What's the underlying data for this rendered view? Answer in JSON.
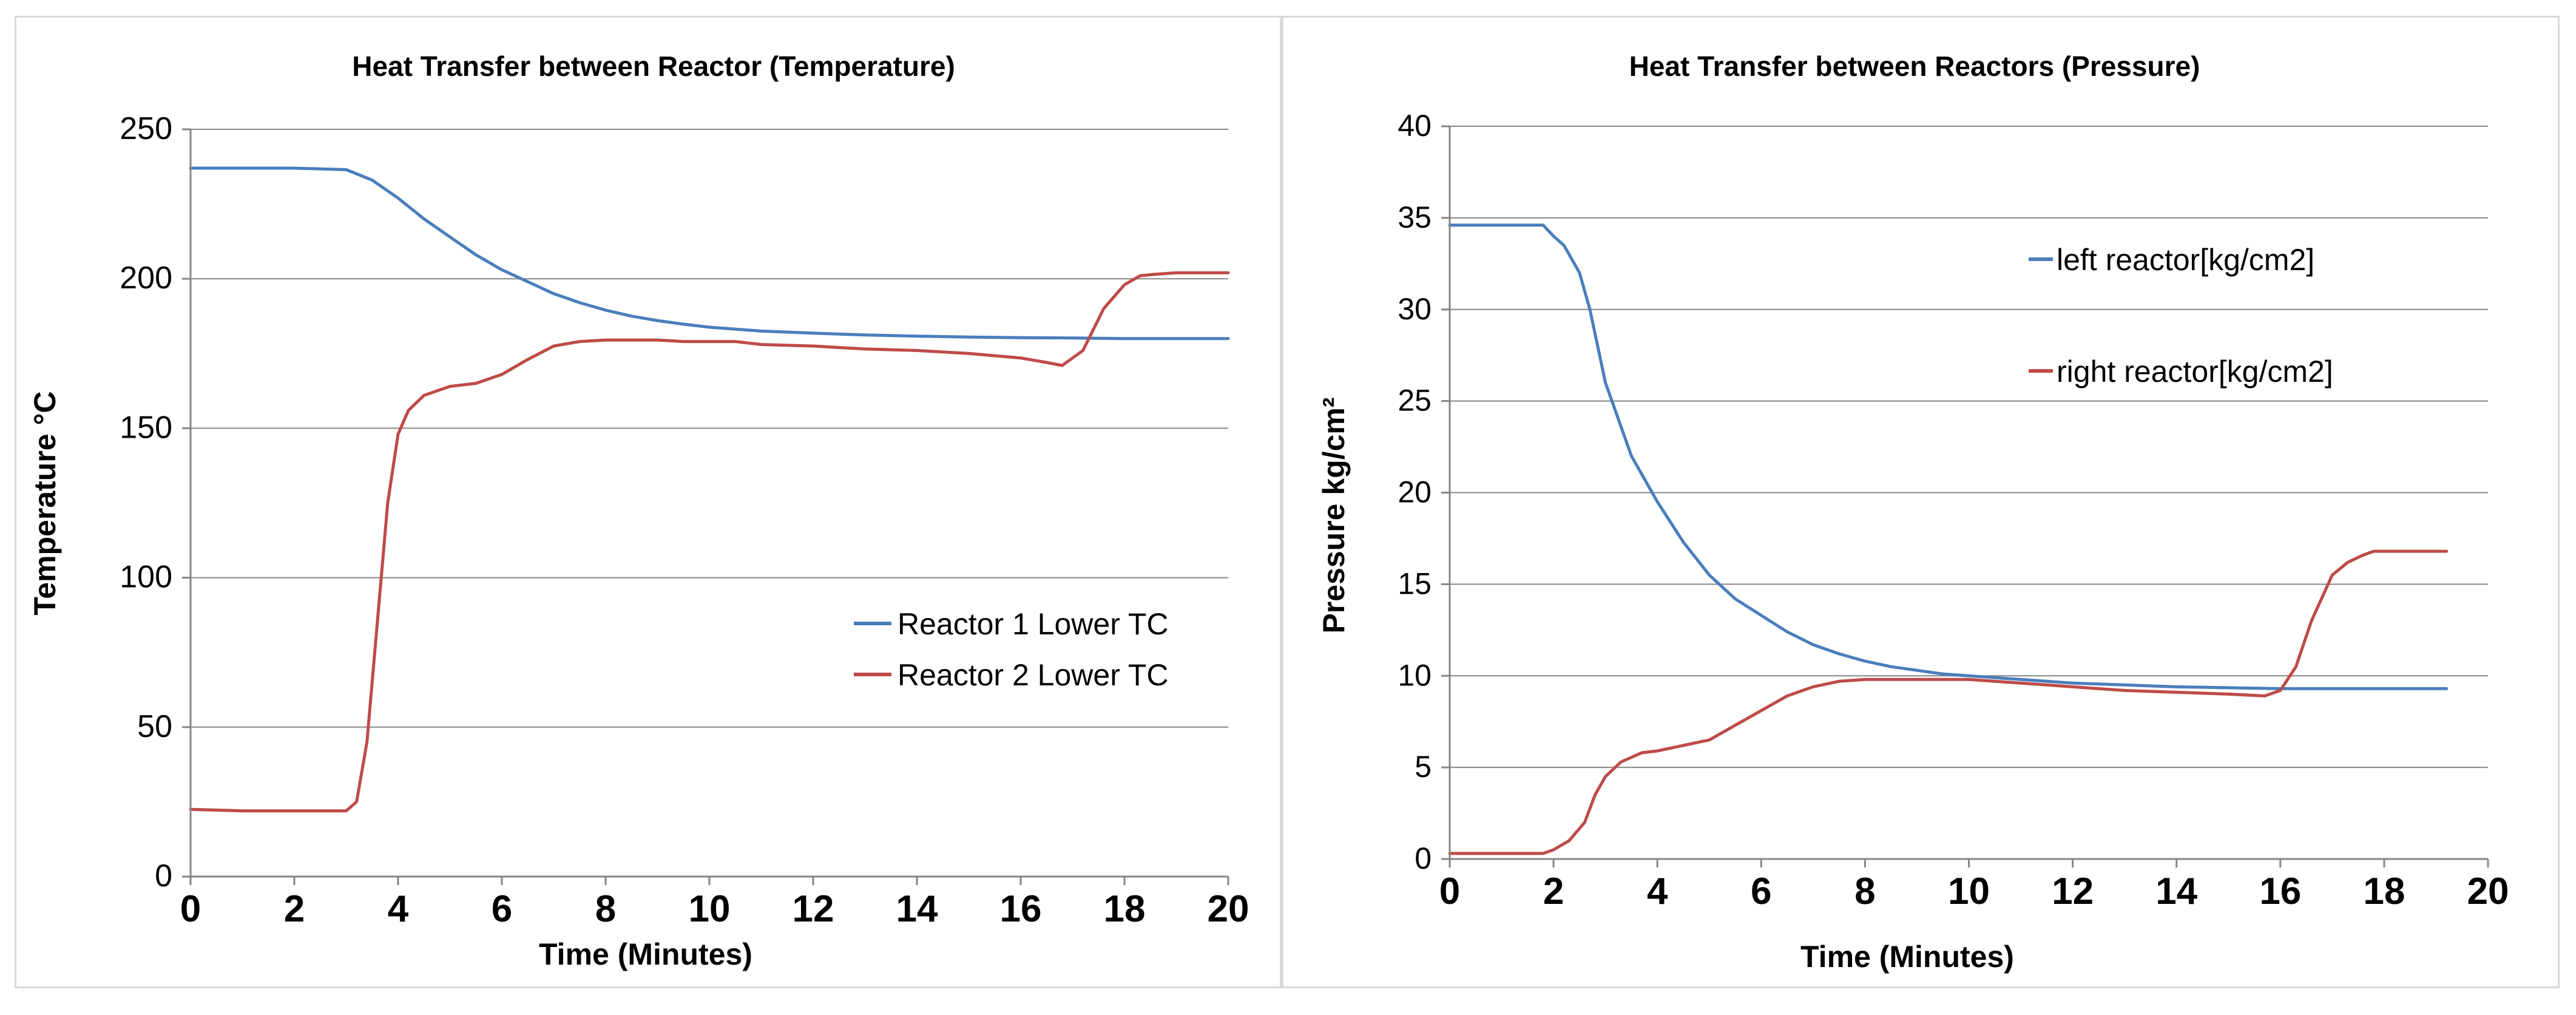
{
  "chart_data": [
    {
      "type": "line",
      "title": "Heat Transfer between Reactor (Temperature)",
      "xlabel": "Time (Minutes)",
      "ylabel": "Temperature  °C",
      "xlim": [
        0,
        20
      ],
      "ylim": [
        0,
        250
      ],
      "xticks": [
        "0",
        "2",
        "4",
        "6",
        "8",
        "10",
        "12",
        "14",
        "16",
        "18",
        "20"
      ],
      "yticks": [
        "0",
        "50",
        "100",
        "150",
        "200",
        "250"
      ],
      "grid": true,
      "legend_position": "middle-right",
      "series": [
        {
          "name": "Reactor 1 Lower TC",
          "color": "#4a7ebb",
          "points": [
            [
              0,
              237
            ],
            [
              1,
              237
            ],
            [
              2,
              237
            ],
            [
              3,
              236.5
            ],
            [
              3.5,
              233
            ],
            [
              4,
              227
            ],
            [
              4.5,
              220
            ],
            [
              5,
              214
            ],
            [
              5.5,
              208
            ],
            [
              6,
              203
            ],
            [
              6.5,
              199
            ],
            [
              7,
              195
            ],
            [
              7.5,
              192
            ],
            [
              8,
              189.5
            ],
            [
              8.5,
              187.5
            ],
            [
              9,
              186
            ],
            [
              9.5,
              184.8
            ],
            [
              10,
              183.8
            ],
            [
              11,
              182.5
            ],
            [
              12,
              181.8
            ],
            [
              13,
              181.2
            ],
            [
              14,
              180.8
            ],
            [
              15,
              180.5
            ],
            [
              16,
              180.3
            ],
            [
              17,
              180.2
            ],
            [
              18,
              180
            ],
            [
              19,
              180
            ],
            [
              20,
              180
            ]
          ]
        },
        {
          "name": "Reactor 2 Lower TC",
          "color": "#be4b48",
          "points": [
            [
              0,
              22.5
            ],
            [
              1,
              22
            ],
            [
              2,
              22
            ],
            [
              3,
              22
            ],
            [
              3.2,
              25
            ],
            [
              3.4,
              45
            ],
            [
              3.6,
              85
            ],
            [
              3.8,
              125
            ],
            [
              4,
              148
            ],
            [
              4.2,
              156
            ],
            [
              4.5,
              161
            ],
            [
              5,
              164
            ],
            [
              5.5,
              165
            ],
            [
              6,
              168
            ],
            [
              6.5,
              173
            ],
            [
              7,
              177.5
            ],
            [
              7.5,
              179
            ],
            [
              8,
              179.5
            ],
            [
              8.5,
              179.5
            ],
            [
              9,
              179.5
            ],
            [
              9.5,
              179
            ],
            [
              10,
              179
            ],
            [
              10.5,
              179
            ],
            [
              11,
              178
            ],
            [
              12,
              177.5
            ],
            [
              13,
              176.5
            ],
            [
              14,
              176
            ],
            [
              15,
              175
            ],
            [
              16,
              173.5
            ],
            [
              16.5,
              172
            ],
            [
              16.8,
              171
            ],
            [
              17.2,
              176
            ],
            [
              17.6,
              190
            ],
            [
              18,
              198
            ],
            [
              18.3,
              201
            ],
            [
              18.6,
              201.5
            ],
            [
              19,
              202
            ],
            [
              20,
              202
            ]
          ]
        }
      ]
    },
    {
      "type": "line",
      "title": "Heat Transfer between Reactors (Pressure)",
      "xlabel": "Time (Minutes)",
      "ylabel": "Pressure  kg/cm²",
      "xlim": [
        0,
        20
      ],
      "ylim": [
        0,
        40
      ],
      "xticks": [
        "0",
        "2",
        "4",
        "6",
        "8",
        "10",
        "12",
        "14",
        "16",
        "18",
        "20"
      ],
      "yticks": [
        "0",
        "5",
        "10",
        "15",
        "20",
        "25",
        "30",
        "35",
        "40"
      ],
      "grid": true,
      "legend_position": "top-right",
      "series": [
        {
          "name": "left reactor[kg/cm2]",
          "color": "#4a7ebb",
          "points": [
            [
              0,
              34.6
            ],
            [
              1,
              34.6
            ],
            [
              1.8,
              34.6
            ],
            [
              2,
              34
            ],
            [
              2.2,
              33.5
            ],
            [
              2.5,
              32
            ],
            [
              2.7,
              30
            ],
            [
              3,
              26
            ],
            [
              3.5,
              22
            ],
            [
              4,
              19.5
            ],
            [
              4.5,
              17.3
            ],
            [
              5,
              15.5
            ],
            [
              5.5,
              14.2
            ],
            [
              6,
              13.3
            ],
            [
              6.5,
              12.4
            ],
            [
              7,
              11.7
            ],
            [
              7.5,
              11.2
            ],
            [
              8,
              10.8
            ],
            [
              8.5,
              10.5
            ],
            [
              9,
              10.3
            ],
            [
              9.5,
              10.1
            ],
            [
              10,
              10
            ],
            [
              10.5,
              9.9
            ],
            [
              11,
              9.8
            ],
            [
              12,
              9.6
            ],
            [
              13,
              9.5
            ],
            [
              14,
              9.4
            ],
            [
              15,
              9.35
            ],
            [
              16,
              9.3
            ],
            [
              17,
              9.3
            ],
            [
              18,
              9.3
            ],
            [
              19.2,
              9.3
            ]
          ]
        },
        {
          "name": "right reactor[kg/cm2]",
          "color": "#be4b48",
          "points": [
            [
              0,
              0.3
            ],
            [
              1,
              0.3
            ],
            [
              1.8,
              0.3
            ],
            [
              2,
              0.5
            ],
            [
              2.3,
              1
            ],
            [
              2.6,
              2
            ],
            [
              2.8,
              3.5
            ],
            [
              3,
              4.5
            ],
            [
              3.3,
              5.3
            ],
            [
              3.7,
              5.8
            ],
            [
              4,
              5.9
            ],
            [
              4.5,
              6.2
            ],
            [
              5,
              6.5
            ],
            [
              5.5,
              7.3
            ],
            [
              6,
              8.1
            ],
            [
              6.5,
              8.9
            ],
            [
              7,
              9.4
            ],
            [
              7.5,
              9.7
            ],
            [
              8,
              9.8
            ],
            [
              9,
              9.8
            ],
            [
              10,
              9.8
            ],
            [
              11,
              9.6
            ],
            [
              11.5,
              9.5
            ],
            [
              12,
              9.4
            ],
            [
              13,
              9.2
            ],
            [
              14,
              9.1
            ],
            [
              15,
              9
            ],
            [
              15.7,
              8.9
            ],
            [
              16,
              9.2
            ],
            [
              16.3,
              10.5
            ],
            [
              16.6,
              13
            ],
            [
              17,
              15.5
            ],
            [
              17.3,
              16.2
            ],
            [
              17.6,
              16.6
            ],
            [
              17.8,
              16.8
            ],
            [
              18.2,
              16.8
            ],
            [
              19.2,
              16.8
            ]
          ]
        }
      ]
    }
  ]
}
